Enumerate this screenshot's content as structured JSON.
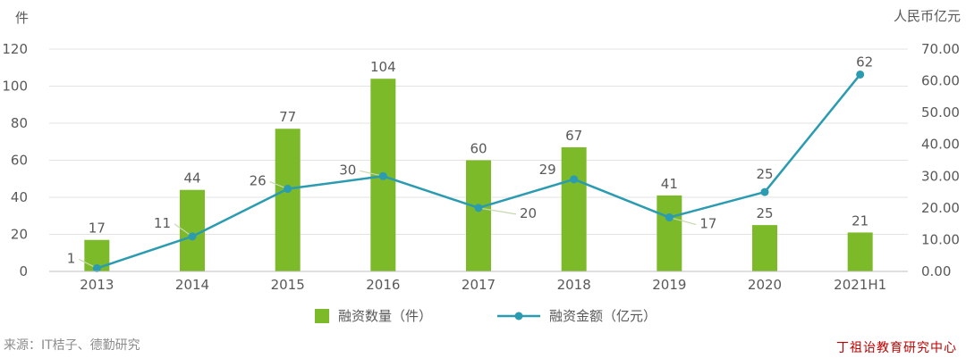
{
  "chart_data": {
    "type": "bar+line",
    "categories": [
      "2013",
      "2014",
      "2015",
      "2016",
      "2017",
      "2018",
      "2019",
      "2020",
      "2021H1"
    ],
    "series": [
      {
        "name": "融资数量（件）",
        "type": "bar",
        "axis": "left",
        "color": "#7cba2a",
        "values": [
          17,
          44,
          77,
          104,
          60,
          67,
          41,
          25,
          21
        ],
        "labels": [
          "17",
          "44",
          "77",
          "104",
          "60",
          "67",
          "41",
          "25",
          "21"
        ]
      },
      {
        "name": "融资金额（亿元）",
        "type": "line",
        "axis": "right",
        "color": "#2a9bb0",
        "values": [
          1,
          11,
          26,
          30,
          20,
          29,
          17,
          25,
          62
        ],
        "labels": [
          "1",
          "11",
          "26",
          "30",
          "20",
          "29",
          "17",
          "25",
          "62"
        ]
      }
    ],
    "y_left": {
      "unit": "件",
      "ylim": [
        0,
        120
      ],
      "ticks": [
        "0",
        "20",
        "40",
        "60",
        "80",
        "100",
        "120"
      ]
    },
    "y_right": {
      "unit": "人民币亿元",
      "ylim": [
        0,
        70
      ],
      "ticks": [
        "0.00",
        "10.00",
        "20.00",
        "30.00",
        "40.00",
        "50.00",
        "60.00",
        "70.00"
      ]
    },
    "grid": true,
    "legend": "bottom"
  },
  "source": "来源：IT桔子、德勤研究",
  "watermark": "丁祖诒教育研究中心"
}
